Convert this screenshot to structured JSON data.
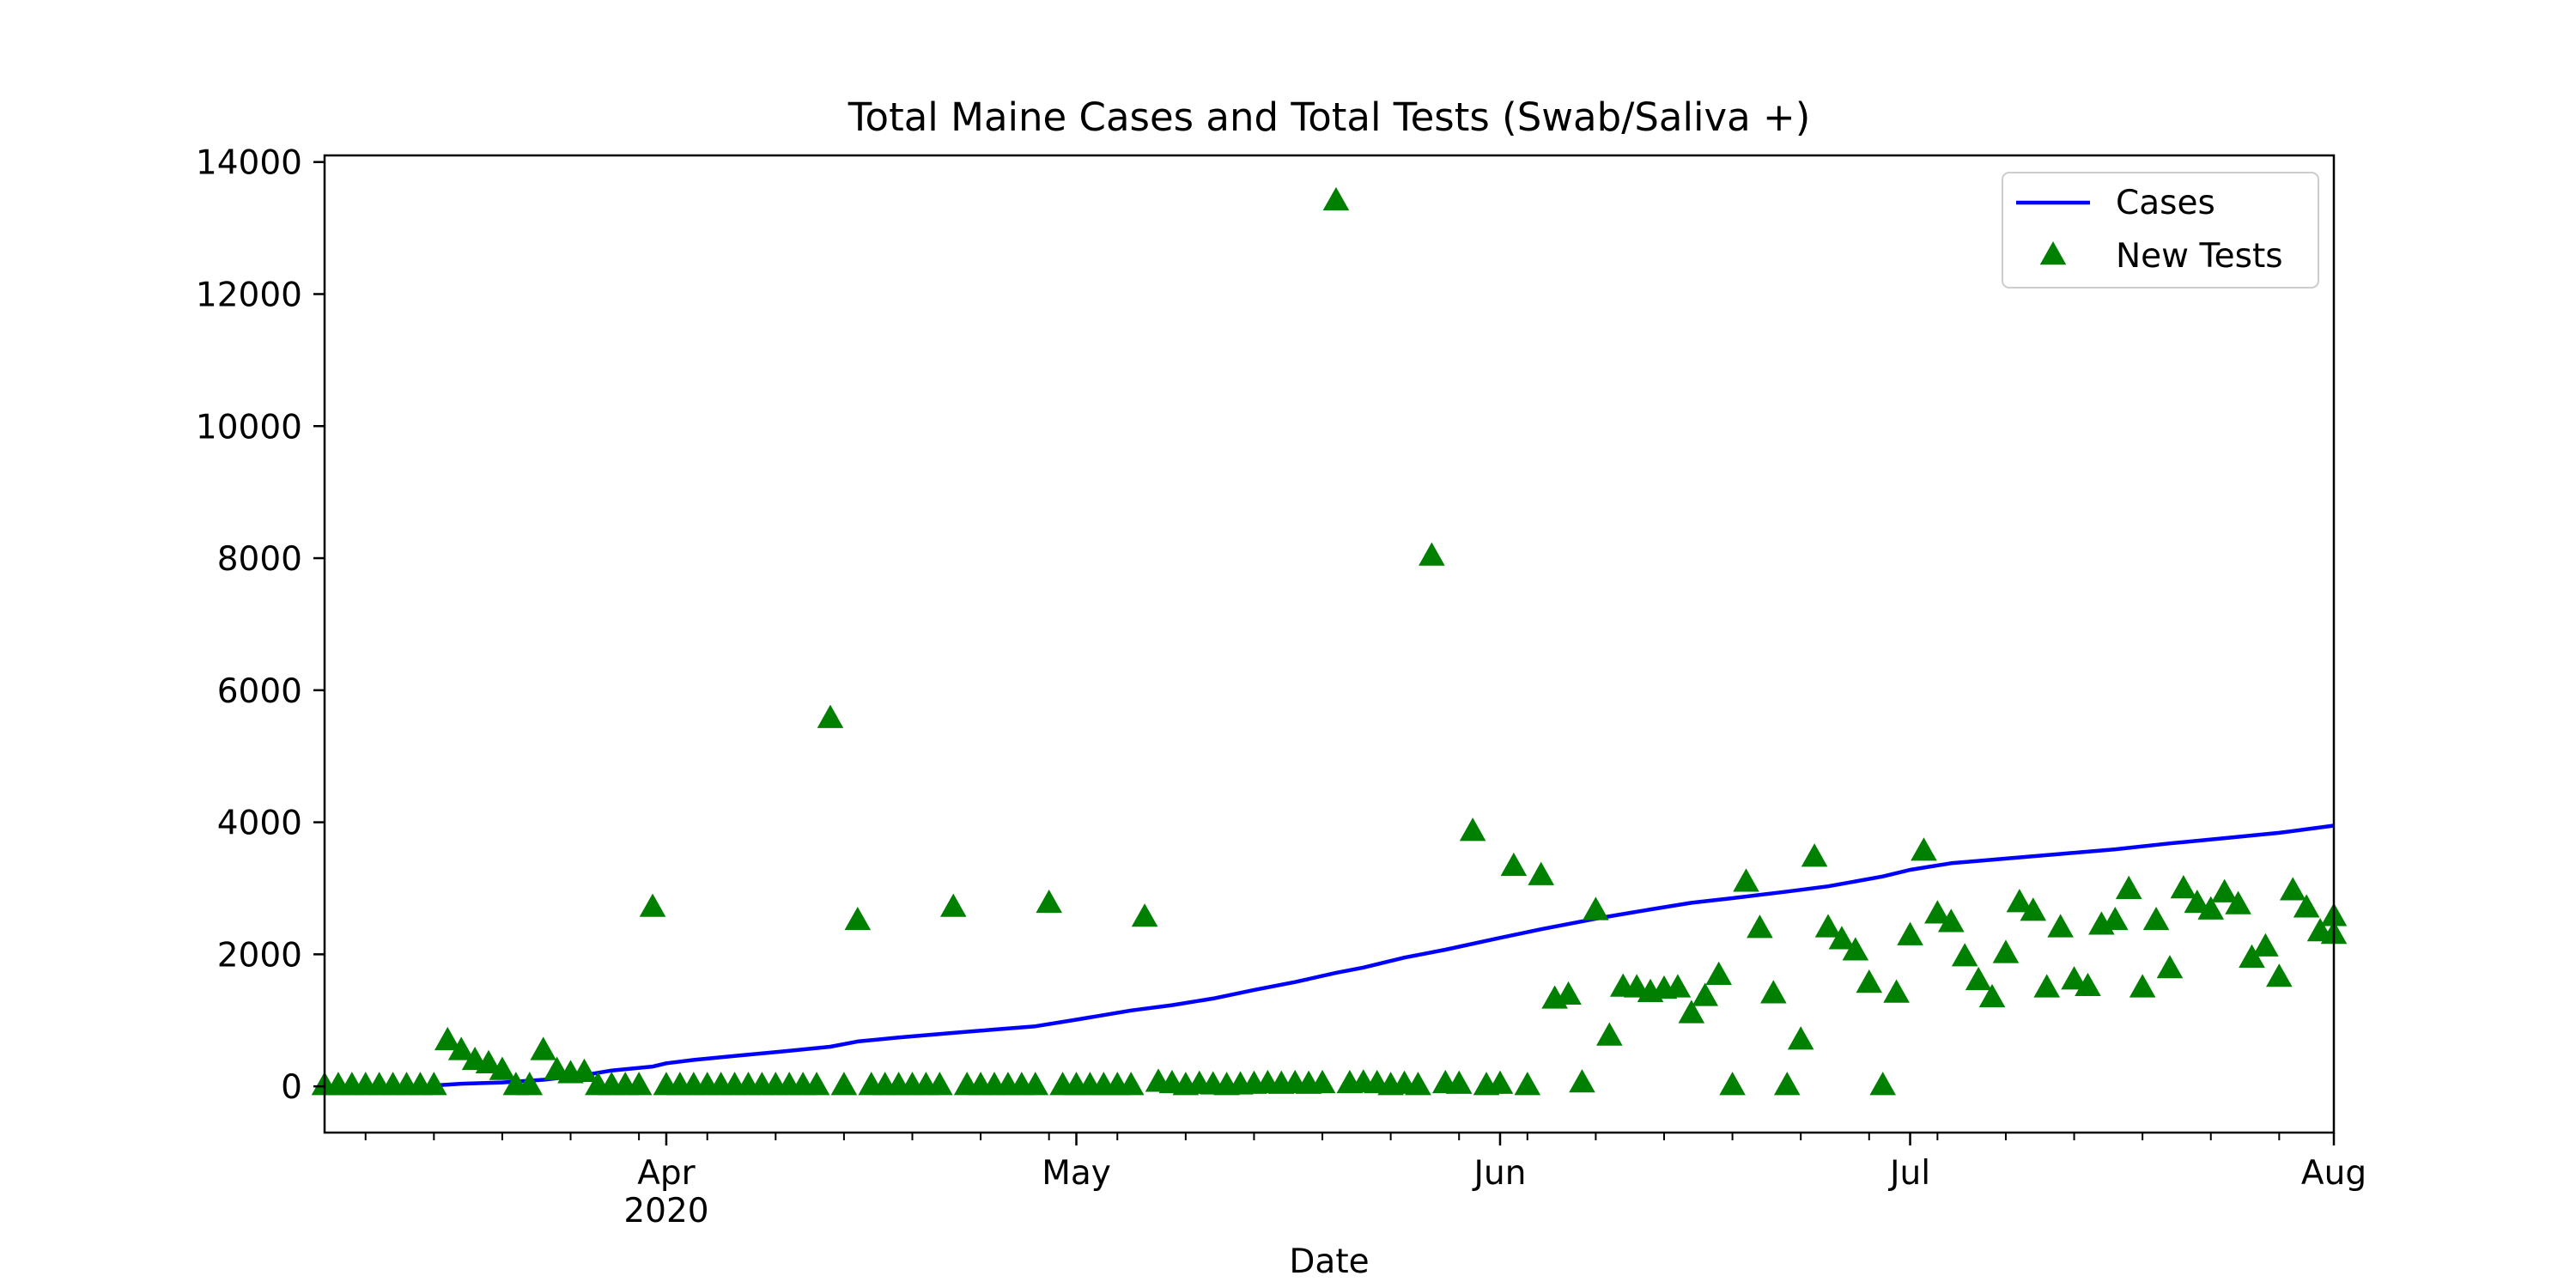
{
  "chart_data": {
    "type": "line",
    "title": "Total Maine Cases and Total Tests (Swab/Saliva +)",
    "xlabel": "Date",
    "ylabel": "",
    "xlim": [
      "2020-03-07",
      "2020-08-01"
    ],
    "ylim": [
      -700,
      14100
    ],
    "x_ticks": [
      {
        "date": "2020-04-01",
        "label": "Apr",
        "sublabel": "2020"
      },
      {
        "date": "2020-05-01",
        "label": "May",
        "sublabel": ""
      },
      {
        "date": "2020-06-01",
        "label": "Jun",
        "sublabel": ""
      },
      {
        "date": "2020-07-01",
        "label": "Jul",
        "sublabel": ""
      },
      {
        "date": "2020-08-01",
        "label": "Aug",
        "sublabel": ""
      }
    ],
    "y_ticks": [
      0,
      2000,
      4000,
      6000,
      8000,
      10000,
      12000,
      14000
    ],
    "legend_position": "top-right",
    "grid": false,
    "series": [
      {
        "name": "Cases",
        "kind": "line",
        "color": "#0000ff",
        "points": [
          [
            "2020-03-14",
            0
          ],
          [
            "2020-03-17",
            40
          ],
          [
            "2020-03-20",
            60
          ],
          [
            "2020-03-23",
            100
          ],
          [
            "2020-03-26",
            170
          ],
          [
            "2020-03-28",
            240
          ],
          [
            "2020-03-31",
            300
          ],
          [
            "2020-04-01",
            350
          ],
          [
            "2020-04-03",
            400
          ],
          [
            "2020-04-06",
            460
          ],
          [
            "2020-04-10",
            540
          ],
          [
            "2020-04-13",
            600
          ],
          [
            "2020-04-15",
            680
          ],
          [
            "2020-04-18",
            740
          ],
          [
            "2020-04-22",
            810
          ],
          [
            "2020-04-25",
            860
          ],
          [
            "2020-04-28",
            910
          ],
          [
            "2020-05-01",
            1010
          ],
          [
            "2020-05-05",
            1150
          ],
          [
            "2020-05-08",
            1230
          ],
          [
            "2020-05-11",
            1330
          ],
          [
            "2020-05-14",
            1460
          ],
          [
            "2020-05-17",
            1580
          ],
          [
            "2020-05-20",
            1720
          ],
          [
            "2020-05-22",
            1800
          ],
          [
            "2020-05-25",
            1950
          ],
          [
            "2020-05-28",
            2070
          ],
          [
            "2020-06-01",
            2250
          ],
          [
            "2020-06-04",
            2380
          ],
          [
            "2020-06-08",
            2540
          ],
          [
            "2020-06-12",
            2680
          ],
          [
            "2020-06-15",
            2780
          ],
          [
            "2020-06-18",
            2850
          ],
          [
            "2020-06-22",
            2950
          ],
          [
            "2020-06-25",
            3030
          ],
          [
            "2020-06-29",
            3180
          ],
          [
            "2020-07-01",
            3280
          ],
          [
            "2020-07-04",
            3380
          ],
          [
            "2020-07-08",
            3450
          ],
          [
            "2020-07-12",
            3520
          ],
          [
            "2020-07-16",
            3590
          ],
          [
            "2020-07-20",
            3680
          ],
          [
            "2020-07-24",
            3760
          ],
          [
            "2020-07-28",
            3840
          ],
          [
            "2020-08-01",
            3950
          ]
        ]
      },
      {
        "name": "New Tests",
        "kind": "scatter",
        "marker": "triangle",
        "color": "#008000",
        "points": [
          [
            "2020-03-07",
            0
          ],
          [
            "2020-03-08",
            0
          ],
          [
            "2020-03-09",
            0
          ],
          [
            "2020-03-10",
            0
          ],
          [
            "2020-03-11",
            0
          ],
          [
            "2020-03-12",
            0
          ],
          [
            "2020-03-13",
            0
          ],
          [
            "2020-03-14",
            0
          ],
          [
            "2020-03-15",
            0
          ],
          [
            "2020-03-16",
            680
          ],
          [
            "2020-03-17",
            530
          ],
          [
            "2020-03-18",
            380
          ],
          [
            "2020-03-19",
            330
          ],
          [
            "2020-03-20",
            230
          ],
          [
            "2020-03-21",
            0
          ],
          [
            "2020-03-22",
            0
          ],
          [
            "2020-03-23",
            530
          ],
          [
            "2020-03-24",
            230
          ],
          [
            "2020-03-25",
            180
          ],
          [
            "2020-03-26",
            200
          ],
          [
            "2020-03-27",
            0
          ],
          [
            "2020-03-28",
            0
          ],
          [
            "2020-03-29",
            0
          ],
          [
            "2020-03-30",
            0
          ],
          [
            "2020-03-31",
            2700
          ],
          [
            "2020-04-01",
            0
          ],
          [
            "2020-04-02",
            0
          ],
          [
            "2020-04-03",
            0
          ],
          [
            "2020-04-04",
            0
          ],
          [
            "2020-04-05",
            0
          ],
          [
            "2020-04-06",
            0
          ],
          [
            "2020-04-07",
            0
          ],
          [
            "2020-04-08",
            0
          ],
          [
            "2020-04-09",
            0
          ],
          [
            "2020-04-10",
            0
          ],
          [
            "2020-04-11",
            0
          ],
          [
            "2020-04-12",
            0
          ],
          [
            "2020-04-13",
            5560
          ],
          [
            "2020-04-14",
            0
          ],
          [
            "2020-04-15",
            2500
          ],
          [
            "2020-04-16",
            0
          ],
          [
            "2020-04-17",
            0
          ],
          [
            "2020-04-18",
            0
          ],
          [
            "2020-04-19",
            0
          ],
          [
            "2020-04-20",
            0
          ],
          [
            "2020-04-21",
            0
          ],
          [
            "2020-04-22",
            2700
          ],
          [
            "2020-04-23",
            0
          ],
          [
            "2020-04-24",
            0
          ],
          [
            "2020-04-25",
            0
          ],
          [
            "2020-04-26",
            0
          ],
          [
            "2020-04-27",
            0
          ],
          [
            "2020-04-28",
            0
          ],
          [
            "2020-04-29",
            2760
          ],
          [
            "2020-04-30",
            0
          ],
          [
            "2020-05-01",
            0
          ],
          [
            "2020-05-02",
            0
          ],
          [
            "2020-05-03",
            0
          ],
          [
            "2020-05-04",
            0
          ],
          [
            "2020-05-05",
            0
          ],
          [
            "2020-05-06",
            2550
          ],
          [
            "2020-05-07",
            50
          ],
          [
            "2020-05-08",
            30
          ],
          [
            "2020-05-09",
            0
          ],
          [
            "2020-05-10",
            20
          ],
          [
            "2020-05-11",
            10
          ],
          [
            "2020-05-12",
            0
          ],
          [
            "2020-05-13",
            10
          ],
          [
            "2020-05-14",
            20
          ],
          [
            "2020-05-15",
            30
          ],
          [
            "2020-05-16",
            20
          ],
          [
            "2020-05-17",
            30
          ],
          [
            "2020-05-18",
            20
          ],
          [
            "2020-05-19",
            30
          ],
          [
            "2020-05-20",
            13400
          ],
          [
            "2020-05-21",
            30
          ],
          [
            "2020-05-22",
            40
          ],
          [
            "2020-05-23",
            30
          ],
          [
            "2020-05-24",
            0
          ],
          [
            "2020-05-25",
            20
          ],
          [
            "2020-05-26",
            0
          ],
          [
            "2020-05-27",
            8020
          ],
          [
            "2020-05-28",
            30
          ],
          [
            "2020-05-29",
            20
          ],
          [
            "2020-05-30",
            3850
          ],
          [
            "2020-05-31",
            0
          ],
          [
            "2020-06-01",
            20
          ],
          [
            "2020-06-02",
            3320
          ],
          [
            "2020-06-03",
            0
          ],
          [
            "2020-06-04",
            3180
          ],
          [
            "2020-06-05",
            1310
          ],
          [
            "2020-06-06",
            1370
          ],
          [
            "2020-06-07",
            40
          ],
          [
            "2020-06-08",
            2650
          ],
          [
            "2020-06-09",
            750
          ],
          [
            "2020-06-10",
            1490
          ],
          [
            "2020-06-11",
            1480
          ],
          [
            "2020-06-12",
            1410
          ],
          [
            "2020-06-13",
            1460
          ],
          [
            "2020-06-14",
            1480
          ],
          [
            "2020-06-15",
            1090
          ],
          [
            "2020-06-16",
            1350
          ],
          [
            "2020-06-17",
            1670
          ],
          [
            "2020-06-18",
            0
          ],
          [
            "2020-06-19",
            3080
          ],
          [
            "2020-06-20",
            2380
          ],
          [
            "2020-06-21",
            1390
          ],
          [
            "2020-06-22",
            0
          ],
          [
            "2020-06-23",
            690
          ],
          [
            "2020-06-24",
            3460
          ],
          [
            "2020-06-25",
            2390
          ],
          [
            "2020-06-26",
            2210
          ],
          [
            "2020-06-27",
            2040
          ],
          [
            "2020-06-28",
            1550
          ],
          [
            "2020-06-29",
            0
          ],
          [
            "2020-06-30",
            1400
          ],
          [
            "2020-07-01",
            2270
          ],
          [
            "2020-07-02",
            3550
          ],
          [
            "2020-07-03",
            2600
          ],
          [
            "2020-07-04",
            2470
          ],
          [
            "2020-07-05",
            1950
          ],
          [
            "2020-07-06",
            1590
          ],
          [
            "2020-07-07",
            1330
          ],
          [
            "2020-07-08",
            2000
          ],
          [
            "2020-07-09",
            2770
          ],
          [
            "2020-07-10",
            2640
          ],
          [
            "2020-07-11",
            1480
          ],
          [
            "2020-07-12",
            2390
          ],
          [
            "2020-07-13",
            1600
          ],
          [
            "2020-07-14",
            1500
          ],
          [
            "2020-07-15",
            2430
          ],
          [
            "2020-07-16",
            2500
          ],
          [
            "2020-07-17",
            2970
          ],
          [
            "2020-07-18",
            1480
          ],
          [
            "2020-07-19",
            2500
          ],
          [
            "2020-07-20",
            1770
          ],
          [
            "2020-07-21",
            2980
          ],
          [
            "2020-07-22",
            2760
          ],
          [
            "2020-07-23",
            2660
          ],
          [
            "2020-07-24",
            2920
          ],
          [
            "2020-07-25",
            2740
          ],
          [
            "2020-07-26",
            1930
          ],
          [
            "2020-07-27",
            2100
          ],
          [
            "2020-07-28",
            1640
          ],
          [
            "2020-07-29",
            2950
          ],
          [
            "2020-07-30",
            2690
          ],
          [
            "2020-07-31",
            2330
          ],
          [
            "2020-08-01",
            2560
          ],
          [
            "2020-08-01",
            2290
          ]
        ]
      }
    ]
  }
}
